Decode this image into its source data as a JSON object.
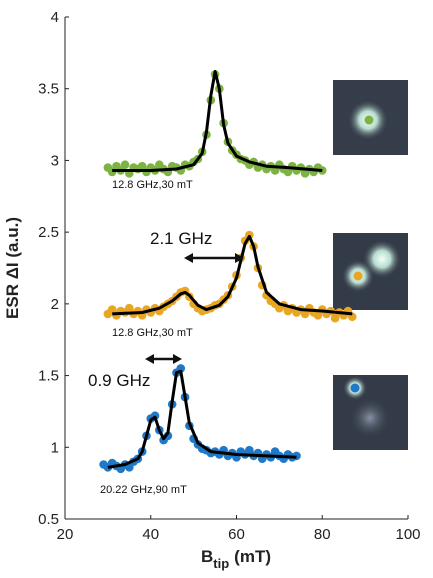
{
  "chart_data": {
    "type": "scatter",
    "y_label": "ESR  ΔI (a.u.)",
    "x_label": "B",
    "x_label_sub": "tip",
    "x_label_unit": "(mT)",
    "xlim": [
      20,
      100
    ],
    "xticks": [
      20,
      40,
      60,
      80,
      100
    ],
    "ylim": [
      0.5,
      4
    ],
    "yticks": [
      0.5,
      1,
      1.5,
      2,
      2.5,
      3,
      3.5,
      4
    ],
    "fit_color": "#000000",
    "annotations": [
      "2.1 GHz",
      "0.9 GHz"
    ],
    "series": [
      {
        "name": "12.8 GHz,30 mT",
        "color": "#7cb342",
        "x": [
          30,
          31,
          32,
          33,
          34,
          35,
          36,
          37,
          38,
          39,
          40,
          41,
          42,
          43,
          44,
          45,
          46,
          47,
          48,
          49,
          50,
          51,
          52,
          53,
          54,
          55,
          56,
          57,
          58,
          59,
          60,
          61,
          62,
          63,
          64,
          65,
          66,
          67,
          68,
          69,
          70,
          71,
          72,
          73,
          74,
          75,
          76,
          77,
          78,
          79,
          80
        ],
        "values": [
          2.95,
          2.92,
          2.96,
          2.93,
          2.97,
          2.91,
          2.95,
          2.94,
          2.96,
          2.92,
          2.95,
          2.93,
          2.97,
          2.94,
          2.92,
          2.96,
          2.95,
          2.93,
          2.97,
          2.96,
          2.99,
          3.01,
          3.06,
          3.18,
          3.42,
          3.6,
          3.5,
          3.26,
          3.13,
          3.07,
          3.04,
          3.01,
          3.0,
          2.97,
          2.99,
          2.95,
          2.97,
          2.94,
          2.96,
          2.93,
          2.97,
          2.94,
          2.92,
          2.96,
          2.93,
          2.95,
          2.91,
          2.94,
          2.92,
          2.95,
          2.93
        ],
        "fit_x": [
          31,
          40,
          46,
          50,
          52,
          53,
          54,
          55,
          56,
          57,
          58,
          60,
          63,
          67,
          72,
          80
        ],
        "fit_values": [
          2.93,
          2.93,
          2.94,
          2.97,
          3.05,
          3.2,
          3.45,
          3.62,
          3.5,
          3.25,
          3.12,
          3.03,
          2.99,
          2.96,
          2.95,
          2.93
        ]
      },
      {
        "name": "12.8 GHz,30 mT",
        "color": "#e8a623",
        "x": [
          30,
          31,
          32,
          33,
          34,
          35,
          36,
          37,
          38,
          39,
          40,
          41,
          42,
          43,
          44,
          45,
          46,
          47,
          48,
          49,
          50,
          51,
          52,
          53,
          54,
          55,
          56,
          57,
          58,
          59,
          60,
          61,
          62,
          63,
          64,
          65,
          66,
          67,
          68,
          69,
          70,
          71,
          72,
          73,
          74,
          75,
          76,
          77,
          78,
          79,
          80,
          81,
          82,
          83,
          84,
          85,
          86,
          87
        ],
        "values": [
          1.93,
          1.96,
          1.92,
          1.95,
          1.94,
          1.97,
          1.93,
          1.95,
          1.92,
          1.96,
          1.94,
          1.97,
          1.95,
          1.98,
          2.0,
          2.02,
          2.05,
          2.08,
          2.09,
          2.05,
          2.0,
          1.97,
          1.95,
          1.96,
          1.97,
          1.99,
          2.0,
          2.03,
          2.06,
          2.12,
          2.2,
          2.32,
          2.44,
          2.48,
          2.4,
          2.25,
          2.13,
          2.06,
          2.02,
          2.0,
          1.97,
          1.99,
          1.95,
          1.97,
          1.94,
          1.96,
          1.93,
          1.97,
          1.94,
          1.92,
          1.96,
          1.93,
          1.95,
          1.9,
          1.94,
          1.92,
          1.95,
          1.91
        ],
        "fit_x": [
          31,
          38,
          42,
          45,
          47,
          48,
          49,
          51,
          53,
          56,
          58,
          60,
          61,
          62,
          63,
          64,
          65,
          67,
          70,
          75,
          80,
          87
        ],
        "fit_values": [
          1.93,
          1.94,
          1.97,
          2.02,
          2.07,
          2.08,
          2.06,
          1.99,
          1.96,
          1.99,
          2.05,
          2.18,
          2.3,
          2.42,
          2.47,
          2.4,
          2.26,
          2.08,
          2.0,
          1.96,
          1.95,
          1.93
        ]
      },
      {
        "name": "20.22 GHz,90 mT",
        "color": "#1f78c8",
        "x": [
          29,
          30,
          31,
          32,
          33,
          34,
          35,
          36,
          37,
          38,
          39,
          40,
          41,
          42,
          43,
          44,
          45,
          46,
          47,
          48,
          49,
          50,
          51,
          52,
          53,
          54,
          55,
          56,
          57,
          58,
          59,
          60,
          61,
          62,
          63,
          64,
          65,
          66,
          67,
          68,
          69,
          70,
          71,
          72,
          73,
          74
        ],
        "values": [
          0.88,
          0.86,
          0.89,
          0.87,
          0.85,
          0.88,
          0.86,
          0.9,
          0.92,
          0.97,
          1.08,
          1.2,
          1.22,
          1.12,
          1.05,
          1.08,
          1.3,
          1.52,
          1.55,
          1.35,
          1.15,
          1.06,
          1.02,
          0.99,
          0.98,
          0.96,
          0.97,
          0.95,
          0.98,
          0.94,
          0.96,
          0.93,
          0.97,
          0.95,
          0.98,
          0.94,
          0.96,
          0.92,
          0.95,
          0.93,
          0.97,
          0.94,
          0.92,
          0.95,
          0.93,
          0.94
        ],
        "fit_x": [
          30,
          34,
          37,
          38,
          39,
          40,
          41,
          42,
          43,
          44,
          45,
          46,
          47,
          48,
          49,
          51,
          54,
          60,
          67,
          74
        ],
        "fit_values": [
          0.86,
          0.88,
          0.92,
          0.97,
          1.08,
          1.19,
          1.21,
          1.12,
          1.06,
          1.1,
          1.32,
          1.52,
          1.53,
          1.35,
          1.17,
          1.03,
          0.97,
          0.95,
          0.94,
          0.93
        ]
      }
    ]
  }
}
